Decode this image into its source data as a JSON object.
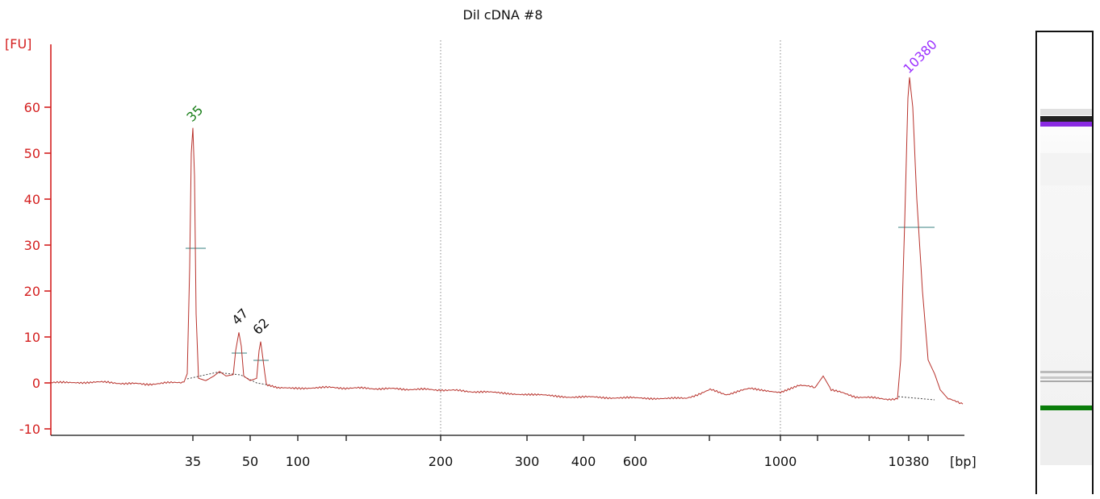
{
  "chart_data": {
    "type": "line",
    "title": "Dil cDNA #8",
    "ylabel": "[FU]",
    "xlabel": "[bp]",
    "ylim": [
      -11,
      74
    ],
    "y_ticks": [
      -10,
      0,
      10,
      20,
      30,
      40,
      50,
      60
    ],
    "x_ticks": [
      "35",
      "50",
      "100",
      "200",
      "300",
      "400",
      "600",
      "1000",
      "10380"
    ],
    "x_scale": "ladder (non-linear)",
    "grid": "dotted vertical lines at 200 and 1000",
    "series": [
      {
        "x": [
          30,
          35,
          47,
          62,
          100,
          200,
          300,
          400,
          600,
          700,
          900,
          1000,
          1500,
          4000,
          10380,
          15000
        ],
        "y": [
          0,
          55.5,
          11,
          9,
          -1,
          -1.5,
          -2.5,
          -3,
          -3.5,
          -1.5,
          -2,
          -1.5,
          1,
          -4,
          66.5,
          -5
        ],
        "color": "#b8322c"
      }
    ],
    "peaks": [
      {
        "label": "35",
        "value": 55.5,
        "color": "#1a7f1a"
      },
      {
        "label": "47",
        "value": 11,
        "color": "#111111"
      },
      {
        "label": "62",
        "value": 9,
        "color": "#111111"
      },
      {
        "label": "10380",
        "value": 66.5,
        "color": "#9b30ff"
      }
    ]
  },
  "gel": {
    "bands": [
      {
        "name": "upper-marker",
        "color": "#8a2be2"
      },
      {
        "name": "lower-marker",
        "color": "#0a7d0a"
      }
    ]
  },
  "colors": {
    "axis": "#d42020",
    "trace": "#b8322c",
    "baseline": "#555555",
    "halfheight": "#3a8080"
  }
}
